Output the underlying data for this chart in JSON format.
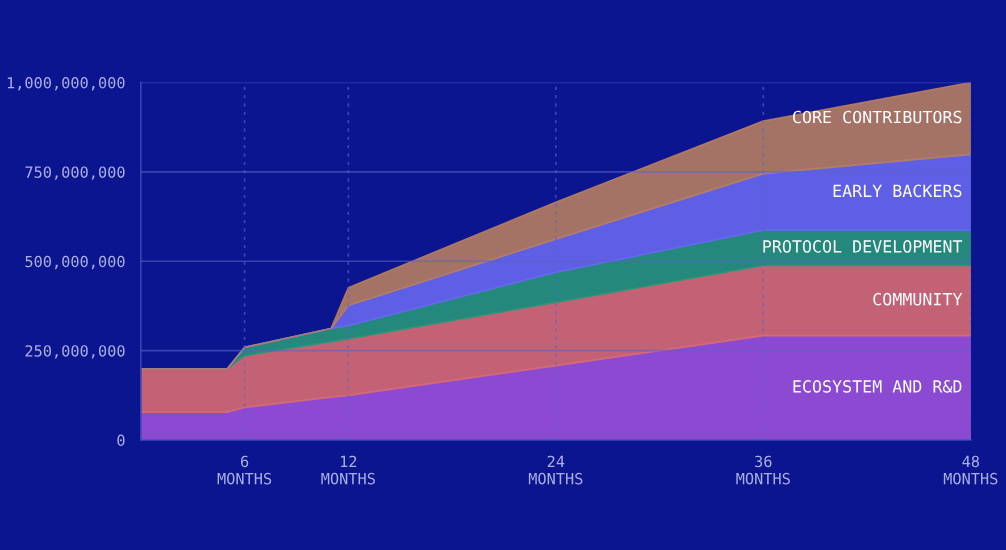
{
  "chart_data": {
    "type": "area",
    "stacked": true,
    "x": [
      0,
      5,
      6,
      11,
      12,
      24,
      36,
      48
    ],
    "series": [
      {
        "name": "ECOSYSTEM AND R&D",
        "color": "#9a4fd8",
        "values": [
          78000000,
          78000000,
          91000000,
          120000000,
          125000000,
          208000000,
          292000000,
          292000000
        ]
      },
      {
        "name": "COMMUNITY",
        "color": "#d86a72",
        "values": [
          121000000,
          121000000,
          145000000,
          155000000,
          158000000,
          177000000,
          196000000,
          196000000
        ]
      },
      {
        "name": "PROTOCOL DEVELOPMENT",
        "color": "#27957a",
        "values": [
          0,
          0,
          23000000,
          37000000,
          37000000,
          84000000,
          99000000,
          99000000
        ]
      },
      {
        "name": "EARLY BACKERS",
        "color": "#6767ee",
        "values": [
          0,
          0,
          0,
          0,
          56000000,
          93000000,
          158000000,
          212000000
        ]
      },
      {
        "name": "CORE CONTRIBUTORS",
        "color": "#b67d62",
        "values": [
          0,
          0,
          0,
          0,
          50000000,
          103000000,
          147000000,
          201000000
        ]
      }
    ],
    "xlim": [
      0,
      48
    ],
    "ylim": [
      0,
      1000000000
    ],
    "xticks": [
      {
        "value": 6,
        "label": "6\nMONTHS"
      },
      {
        "value": 12,
        "label": "12\nMONTHS"
      },
      {
        "value": 24,
        "label": "24\nMONTHS"
      },
      {
        "value": 36,
        "label": "36\nMONTHS"
      },
      {
        "value": 48,
        "label": "48\nMONTHS"
      }
    ],
    "yticks": [
      {
        "value": 0,
        "label": "0"
      },
      {
        "value": 250000000,
        "label": "250,000,000"
      },
      {
        "value": 500000000,
        "label": "500,000,000"
      },
      {
        "value": 750000000,
        "label": "750,000,000"
      },
      {
        "value": 1000000000,
        "label": "1,000,000,000"
      }
    ],
    "grid": true,
    "legend": false
  }
}
